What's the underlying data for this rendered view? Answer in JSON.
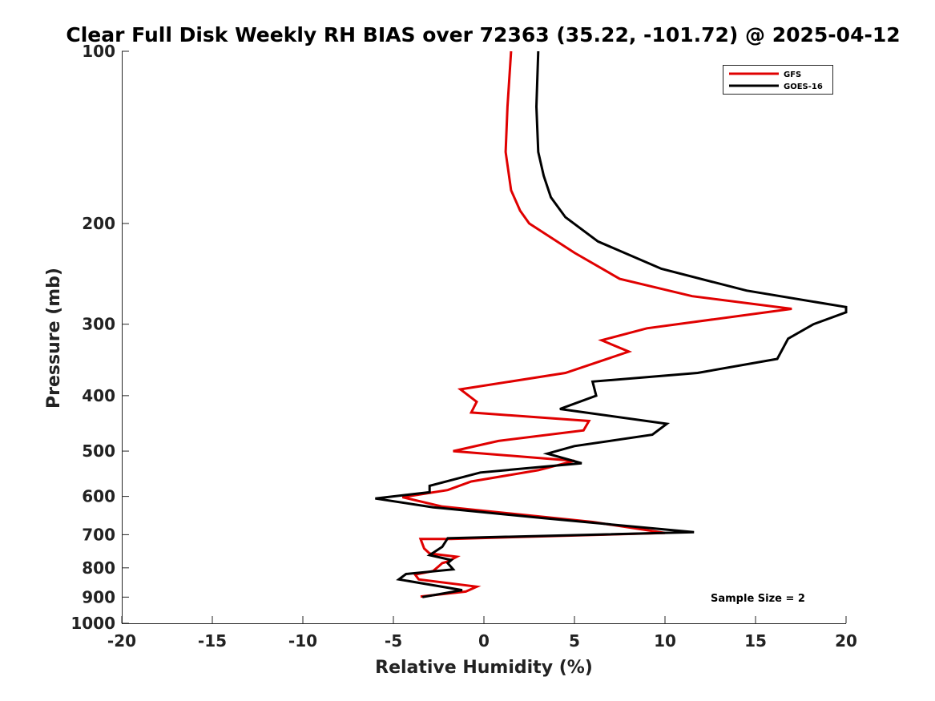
{
  "chart_data": {
    "type": "line",
    "title": "Clear Full Disk Weekly RH BIAS over 72363 (35.22, -101.72) @ 2025-04-12",
    "xlabel": "Relative Humidity (%)",
    "ylabel": "Pressure (mb)",
    "xlim": [
      -20,
      20
    ],
    "ylim": [
      100,
      1000
    ],
    "yscale": "log",
    "y_reversed": true,
    "grid": false,
    "legend_position": "top-right",
    "x_ticks": [
      -20,
      -15,
      -10,
      -5,
      0,
      5,
      10,
      15,
      20
    ],
    "x_tick_labels": [
      "-20",
      "-15",
      "-10",
      "-5",
      "0",
      "5",
      "10",
      "15",
      "20"
    ],
    "y_ticks": [
      100,
      200,
      300,
      400,
      500,
      600,
      700,
      800,
      900,
      1000
    ],
    "y_tick_labels": [
      "100",
      "200",
      "300",
      "400",
      "500",
      "600",
      "700",
      "800",
      "900",
      "1000"
    ],
    "annotation": "Sample Size = 2",
    "series": [
      {
        "name": "GFS",
        "color": "#e00000",
        "points": [
          [
            1.5,
            100
          ],
          [
            1.3,
            125
          ],
          [
            1.2,
            150
          ],
          [
            1.5,
            175
          ],
          [
            2.0,
            190
          ],
          [
            2.5,
            200
          ],
          [
            5.0,
            225
          ],
          [
            7.5,
            250
          ],
          [
            11.5,
            268
          ],
          [
            17.0,
            282
          ],
          [
            9.0,
            305
          ],
          [
            6.5,
            320
          ],
          [
            8.0,
            335
          ],
          [
            4.5,
            365
          ],
          [
            -1.3,
            390
          ],
          [
            -0.4,
            410
          ],
          [
            -0.7,
            428
          ],
          [
            5.8,
            443
          ],
          [
            5.5,
            460
          ],
          [
            0.8,
            480
          ],
          [
            -1.7,
            500
          ],
          [
            5.0,
            520
          ],
          [
            3.0,
            540
          ],
          [
            -0.7,
            565
          ],
          [
            -2.0,
            585
          ],
          [
            -4.5,
            602
          ],
          [
            -2.3,
            625
          ],
          [
            6.0,
            665
          ],
          [
            10.0,
            695
          ],
          [
            -1.8,
            712
          ],
          [
            -3.5,
            712
          ],
          [
            -3.3,
            740
          ],
          [
            -3.0,
            755
          ],
          [
            -1.5,
            765
          ],
          [
            -2.0,
            780
          ],
          [
            -2.3,
            785
          ],
          [
            -2.5,
            795
          ],
          [
            -2.8,
            810
          ],
          [
            -3.8,
            822
          ],
          [
            -3.6,
            838
          ],
          [
            -0.4,
            863
          ],
          [
            -1.0,
            880
          ],
          [
            -3.5,
            898
          ]
        ]
      },
      {
        "name": "GOES-16",
        "color": "#000000",
        "points": [
          [
            3.0,
            100
          ],
          [
            2.9,
            125
          ],
          [
            3.0,
            150
          ],
          [
            3.3,
            165
          ],
          [
            3.7,
            180
          ],
          [
            4.5,
            195
          ],
          [
            6.3,
            215
          ],
          [
            9.8,
            240
          ],
          [
            14.5,
            262
          ],
          [
            20.0,
            280
          ],
          [
            20.0,
            286
          ],
          [
            18.2,
            300
          ],
          [
            16.8,
            318
          ],
          [
            16.2,
            345
          ],
          [
            11.8,
            365
          ],
          [
            6.0,
            378
          ],
          [
            6.2,
            400
          ],
          [
            4.2,
            422
          ],
          [
            10.1,
            448
          ],
          [
            9.3,
            468
          ],
          [
            5.0,
            490
          ],
          [
            3.5,
            505
          ],
          [
            5.4,
            525
          ],
          [
            -0.2,
            545
          ],
          [
            -3.0,
            575
          ],
          [
            -3.0,
            590
          ],
          [
            -6.0,
            605
          ],
          [
            -2.8,
            627
          ],
          [
            3.3,
            655
          ],
          [
            11.6,
            693
          ],
          [
            -2.0,
            710
          ],
          [
            -2.3,
            735
          ],
          [
            -3.0,
            760
          ],
          [
            -1.8,
            775
          ],
          [
            -2.0,
            785
          ],
          [
            -1.7,
            805
          ],
          [
            -4.3,
            820
          ],
          [
            -4.7,
            838
          ],
          [
            -1.2,
            875
          ],
          [
            -3.4,
            900
          ]
        ]
      }
    ]
  }
}
